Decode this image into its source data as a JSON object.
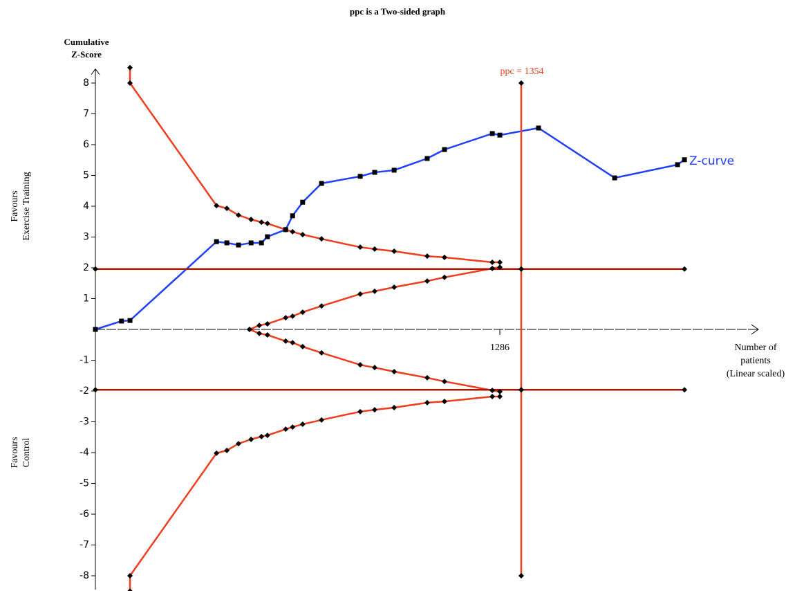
{
  "chart_data": {
    "type": "line",
    "title": "ppc is a Two-sided graph",
    "y_label": "Cumulative Z-Score",
    "x_label": "Number of patients (Linear scaled)",
    "y_upper_label": "Favours Exercise Training",
    "y_lower_label": "Favours Control",
    "annotations": [
      "ppc = 1354",
      "Z-curve"
    ],
    "xlim": [
      0,
      2108
    ],
    "xticks": [
      1286
    ],
    "ylim": [
      -8.5,
      8.5
    ],
    "yticks": [
      -8,
      -7,
      -6,
      -5,
      -4,
      -3,
      -2,
      -1,
      1,
      2,
      3,
      4,
      5,
      6,
      7,
      8
    ],
    "series": [
      {
        "name": "Z-curve",
        "color": "#1f3fff",
        "marker": "square",
        "x": [
          0,
          83,
          110,
          385,
          418,
          455,
          495,
          528,
          547,
          605,
          627,
          659,
          719,
          842,
          888,
          950,
          1055,
          1110,
          1262,
          1286,
          1409,
          1651,
          1851,
          1873
        ],
        "values": [
          0,
          0.27,
          0.29,
          2.85,
          2.81,
          2.74,
          2.81,
          2.81,
          3.01,
          3.24,
          3.69,
          4.13,
          4.74,
          4.97,
          5.1,
          5.17,
          5.55,
          5.84,
          6.36,
          6.31,
          6.54,
          4.92,
          5.35,
          5.51
        ]
      },
      {
        "color": "#f03c1e",
        "marker": "diamond",
        "x": [
          110,
          110,
          385,
          418,
          455,
          495,
          528,
          547,
          605,
          627,
          659,
          719,
          842,
          888,
          950,
          1055,
          1110,
          1262,
          1286
        ],
        "values": [
          8.5,
          8,
          4.02,
          3.93,
          3.71,
          3.57,
          3.48,
          3.44,
          3.24,
          3.17,
          3.08,
          2.94,
          2.67,
          2.61,
          2.54,
          2.38,
          2.34,
          2.18,
          2.18
        ]
      },
      {
        "color": "#f03c1e",
        "marker": "diamond",
        "x": [
          110,
          110,
          385,
          418,
          455,
          495,
          528,
          547,
          605,
          627,
          659,
          719,
          842,
          888,
          950,
          1055,
          1110,
          1262,
          1286
        ],
        "values": [
          -8.5,
          -8,
          -4.02,
          -3.93,
          -3.71,
          -3.57,
          -3.48,
          -3.44,
          -3.24,
          -3.17,
          -3.08,
          -2.94,
          -2.67,
          -2.61,
          -2.54,
          -2.38,
          -2.34,
          -2.18,
          -2.18
        ]
      },
      {
        "color": "#f03c1e",
        "marker": "diamond",
        "x": [
          490,
          521,
          547,
          605,
          627,
          659,
          719,
          842,
          888,
          950,
          1055,
          1110,
          1262,
          1286
        ],
        "values": [
          0,
          0.13,
          0.18,
          0.38,
          0.43,
          0.56,
          0.76,
          1.15,
          1.24,
          1.37,
          1.57,
          1.69,
          1.98,
          2.02
        ]
      },
      {
        "color": "#f03c1e",
        "marker": "diamond",
        "x": [
          490,
          521,
          547,
          605,
          627,
          659,
          719,
          842,
          888,
          950,
          1055,
          1110,
          1262,
          1286
        ],
        "values": [
          0,
          -0.13,
          -0.18,
          -0.38,
          -0.43,
          -0.56,
          -0.76,
          -1.15,
          -1.24,
          -1.37,
          -1.57,
          -1.69,
          -1.98,
          -2.02
        ]
      },
      {
        "color": "#a31800",
        "marker": "diamond",
        "x": [
          0,
          1354,
          1873
        ],
        "values": [
          1.96,
          1.96,
          1.96
        ]
      },
      {
        "color": "#a31800",
        "marker": "diamond",
        "x": [
          0,
          1354,
          1873
        ],
        "values": [
          -1.96,
          -1.96,
          -1.96
        ]
      },
      {
        "color": "#f03c1e",
        "marker": "diamond",
        "x": [
          1354,
          1354,
          1354,
          1354
        ],
        "values": [
          8,
          1.96,
          -1.96,
          -8
        ]
      }
    ]
  }
}
